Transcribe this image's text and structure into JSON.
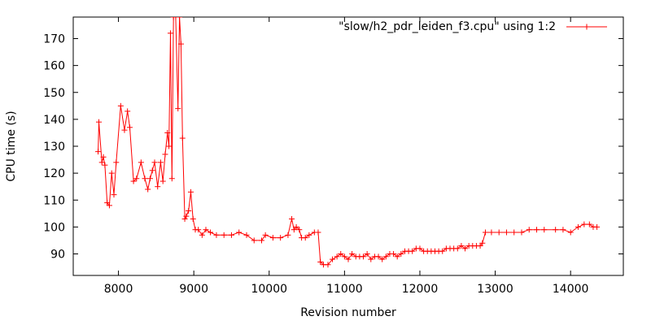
{
  "chart_data": {
    "type": "line",
    "title": "",
    "xlabel": "Revision number",
    "ylabel": "CPU time (s)",
    "xlim": [
      7400,
      14700
    ],
    "ylim": [
      82,
      178
    ],
    "xticks": [
      8000,
      9000,
      10000,
      11000,
      12000,
      13000,
      14000
    ],
    "yticks": [
      90,
      100,
      110,
      120,
      130,
      140,
      150,
      160,
      170
    ],
    "grid": false,
    "legend_position": "top-right",
    "colors": {
      "series": "#ff0000",
      "axis": "#000000"
    },
    "series": [
      {
        "name": "\"slow/h2_pdr_leiden_f3.cpu\" using 1:2",
        "marker": "plus",
        "points": [
          [
            7730,
            128
          ],
          [
            7740,
            139
          ],
          [
            7780,
            124
          ],
          [
            7800,
            126
          ],
          [
            7820,
            123
          ],
          [
            7850,
            109
          ],
          [
            7880,
            108
          ],
          [
            7910,
            120
          ],
          [
            7940,
            112
          ],
          [
            7970,
            124
          ],
          [
            8030,
            145
          ],
          [
            8080,
            136
          ],
          [
            8120,
            143
          ],
          [
            8150,
            137
          ],
          [
            8200,
            117
          ],
          [
            8240,
            118
          ],
          [
            8300,
            124
          ],
          [
            8350,
            118
          ],
          [
            8390,
            114
          ],
          [
            8420,
            118
          ],
          [
            8450,
            121
          ],
          [
            8480,
            124
          ],
          [
            8520,
            115
          ],
          [
            8560,
            124
          ],
          [
            8590,
            117
          ],
          [
            8620,
            127
          ],
          [
            8650,
            135
          ],
          [
            8670,
            130
          ],
          [
            8690,
            172
          ],
          [
            8710,
            118
          ],
          [
            8730,
            178
          ],
          [
            8760,
            178
          ],
          [
            8790,
            144
          ],
          [
            8810,
            178
          ],
          [
            8830,
            168
          ],
          [
            8850,
            133
          ],
          [
            8880,
            103
          ],
          [
            8900,
            104
          ],
          [
            8930,
            106
          ],
          [
            8960,
            113
          ],
          [
            8990,
            103
          ],
          [
            9020,
            99
          ],
          [
            9060,
            99
          ],
          [
            9110,
            97
          ],
          [
            9160,
            99
          ],
          [
            9220,
            98
          ],
          [
            9300,
            97
          ],
          [
            9400,
            97
          ],
          [
            9500,
            97
          ],
          [
            9600,
            98
          ],
          [
            9700,
            97
          ],
          [
            9800,
            95
          ],
          [
            9900,
            95
          ],
          [
            9950,
            97
          ],
          [
            10050,
            96
          ],
          [
            10150,
            96
          ],
          [
            10250,
            97
          ],
          [
            10300,
            103
          ],
          [
            10330,
            99
          ],
          [
            10360,
            100
          ],
          [
            10400,
            99
          ],
          [
            10430,
            96
          ],
          [
            10480,
            96
          ],
          [
            10530,
            97
          ],
          [
            10600,
            98
          ],
          [
            10650,
            98
          ],
          [
            10680,
            87
          ],
          [
            10720,
            86
          ],
          [
            10780,
            86
          ],
          [
            10840,
            88
          ],
          [
            10900,
            89
          ],
          [
            10950,
            90
          ],
          [
            11000,
            89
          ],
          [
            11050,
            88
          ],
          [
            11100,
            90
          ],
          [
            11150,
            89
          ],
          [
            11200,
            89
          ],
          [
            11250,
            89
          ],
          [
            11300,
            90
          ],
          [
            11350,
            88
          ],
          [
            11400,
            89
          ],
          [
            11450,
            89
          ],
          [
            11500,
            88
          ],
          [
            11550,
            89
          ],
          [
            11600,
            90
          ],
          [
            11650,
            90
          ],
          [
            11700,
            89
          ],
          [
            11750,
            90
          ],
          [
            11800,
            91
          ],
          [
            11850,
            91
          ],
          [
            11900,
            91
          ],
          [
            11950,
            92
          ],
          [
            12000,
            92
          ],
          [
            12050,
            91
          ],
          [
            12100,
            91
          ],
          [
            12150,
            91
          ],
          [
            12200,
            91
          ],
          [
            12250,
            91
          ],
          [
            12300,
            91
          ],
          [
            12350,
            92
          ],
          [
            12400,
            92
          ],
          [
            12450,
            92
          ],
          [
            12500,
            92
          ],
          [
            12550,
            93
          ],
          [
            12600,
            92
          ],
          [
            12650,
            93
          ],
          [
            12700,
            93
          ],
          [
            12750,
            93
          ],
          [
            12800,
            93
          ],
          [
            12830,
            94
          ],
          [
            12870,
            98
          ],
          [
            12950,
            98
          ],
          [
            13050,
            98
          ],
          [
            13150,
            98
          ],
          [
            13250,
            98
          ],
          [
            13350,
            98
          ],
          [
            13450,
            99
          ],
          [
            13550,
            99
          ],
          [
            13650,
            99
          ],
          [
            13800,
            99
          ],
          [
            13900,
            99
          ],
          [
            14000,
            98
          ],
          [
            14100,
            100
          ],
          [
            14180,
            101
          ],
          [
            14250,
            101
          ],
          [
            14300,
            100
          ],
          [
            14350,
            100
          ]
        ]
      }
    ]
  }
}
